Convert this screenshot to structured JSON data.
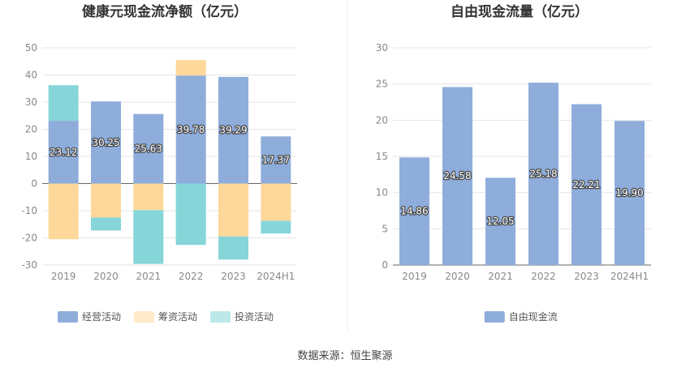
{
  "source": "数据来源：恒生聚源",
  "chart_data": [
    {
      "type": "bar",
      "stacked": true,
      "title": "健康元现金流净额（亿元）",
      "categories": [
        "2019",
        "2020",
        "2021",
        "2022",
        "2023",
        "2024H1"
      ],
      "ylim": [
        -30,
        50
      ],
      "yticks": [
        -30,
        -20,
        -10,
        0,
        10,
        20,
        30,
        40,
        50
      ],
      "grid": true,
      "legend": "bottom",
      "series": [
        {
          "name": "经营活动",
          "color": "#8eaddb",
          "values": [
            23.12,
            30.25,
            25.63,
            39.78,
            39.29,
            17.37
          ],
          "labels": [
            "23.12",
            "30.25",
            "25.63",
            "39.78",
            "39.29",
            "17.37"
          ]
        },
        {
          "name": "筹资活动",
          "color": "#fdd89a",
          "values": [
            -20.5,
            -12.5,
            -9.8,
            5.7,
            -19.5,
            -13.7
          ]
        },
        {
          "name": "投资活动",
          "color": "#86d5d9",
          "values": [
            13.1,
            -4.8,
            -19.8,
            -22.6,
            -8.5,
            -4.7
          ]
        }
      ]
    },
    {
      "type": "bar",
      "title": "自由现金流量（亿元）",
      "categories": [
        "2019",
        "2020",
        "2021",
        "2022",
        "2023",
        "2024H1"
      ],
      "ylim": [
        0,
        30
      ],
      "yticks": [
        0,
        5,
        10,
        15,
        20,
        25,
        30
      ],
      "grid": true,
      "legend": "bottom",
      "series": [
        {
          "name": "自由现金流",
          "color": "#8eaddb",
          "values": [
            14.86,
            24.58,
            12.05,
            25.18,
            22.21,
            19.9
          ],
          "labels": [
            "14.86",
            "24.58",
            "12.05",
            "25.18",
            "22.21",
            "19.90"
          ]
        }
      ]
    }
  ]
}
